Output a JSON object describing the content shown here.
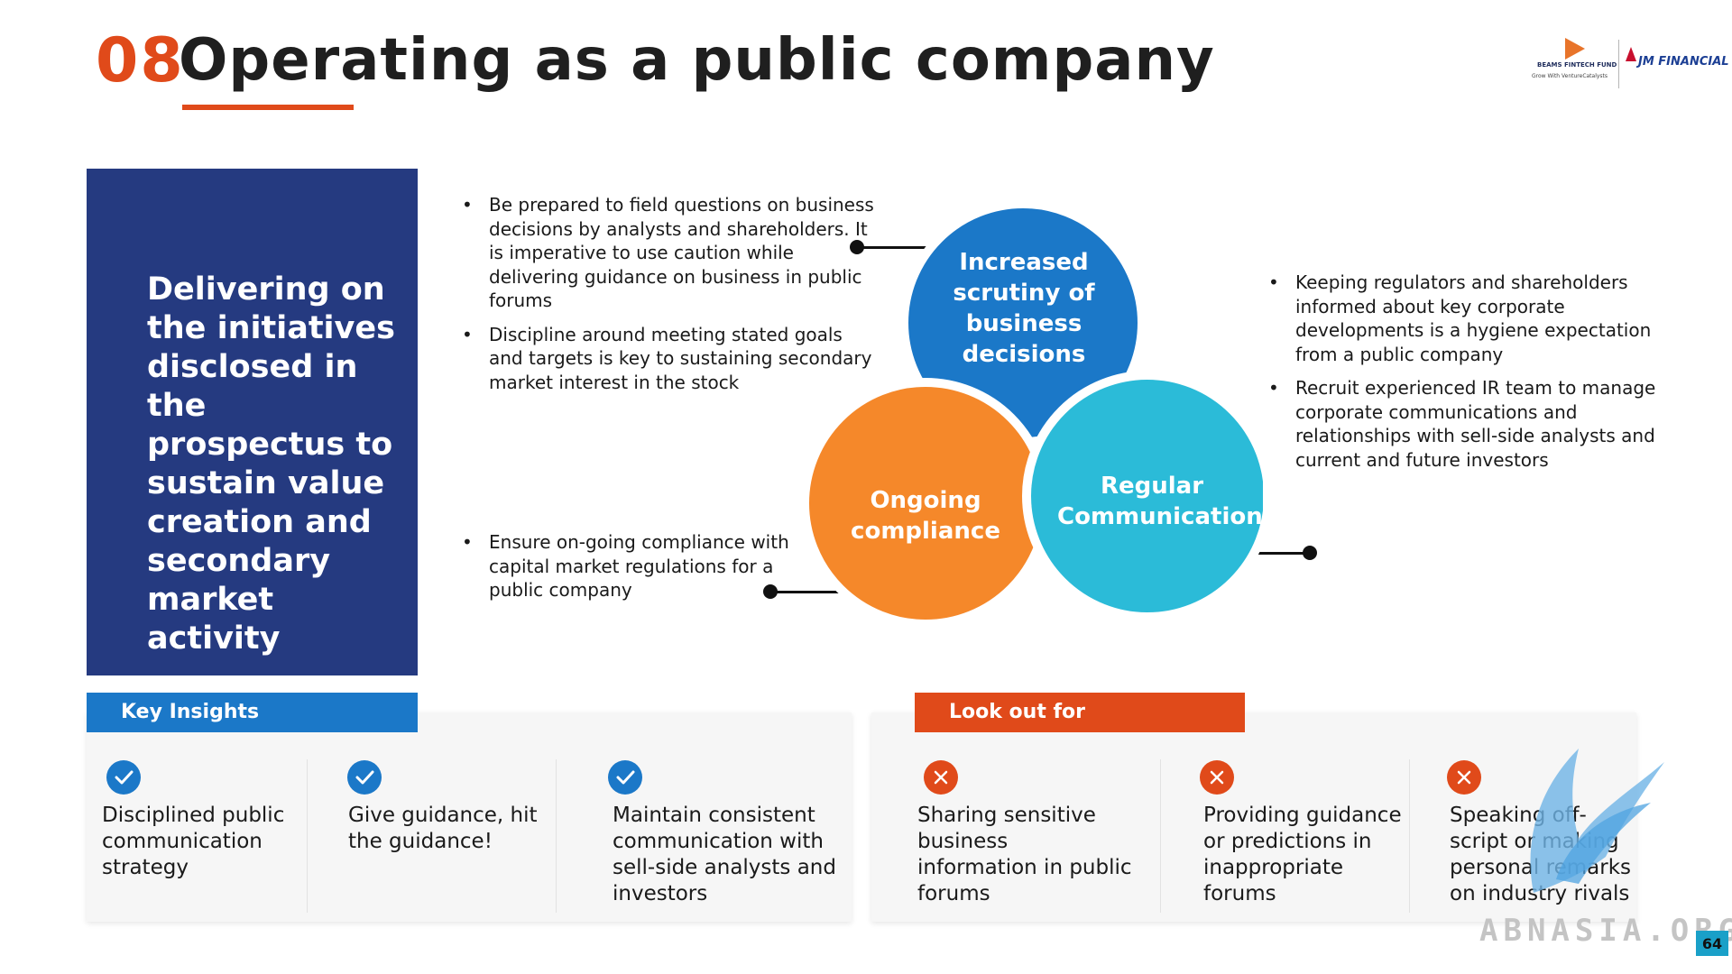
{
  "header": {
    "section_number": "08",
    "title": "Operating as a public company"
  },
  "logos": {
    "beams": "BEAMS FINTECH FUND",
    "beams_tagline": "Grow With VentureCatalysts",
    "jm": "JM FINANCIAL"
  },
  "navy_box": {
    "text": "Delivering on the initiatives disclosed in the prospectus to sustain value creation and secondary market activity"
  },
  "bullets_top_left": [
    "Be prepared to field questions on business decisions by analysts and shareholders. It is imperative to use caution while delivering guidance on business in public forums",
    "Discipline around meeting stated goals and targets is key to sustaining secondary market interest in the stock"
  ],
  "bullets_bottom_left": [
    "Ensure on-going compliance with capital market regulations for a public company"
  ],
  "bullets_right": [
    "Keeping regulators and shareholders informed about key corporate developments is a hygiene expectation from a public company",
    "Recruit experienced IR team to manage corporate communications and relationships with sell-side analysts and current and future investors"
  ],
  "diagram": {
    "circles": [
      {
        "label": "Increased scrutiny of business decisions",
        "color": "#1b78c8"
      },
      {
        "label": "Ongoing compliance",
        "color": "#f5882a"
      },
      {
        "label": "Regular Communication",
        "color": "#2bbbd8"
      }
    ]
  },
  "key_insights": {
    "heading": "Key Insights",
    "color": "#1b78c8",
    "items": [
      "Disciplined public communication strategy",
      "Give guidance, hit the guidance!",
      "Maintain consistent communication with sell-side analysts and investors"
    ]
  },
  "look_out_for": {
    "heading": "Look out for",
    "color": "#e04a1a",
    "items": [
      "Sharing sensitive business information in public forums",
      "Providing guidance or predictions in inappropriate forums",
      "Speaking off-script or making personal remarks on industry rivals"
    ]
  },
  "watermark": "ABNASIA.ORG",
  "page_number": "64"
}
